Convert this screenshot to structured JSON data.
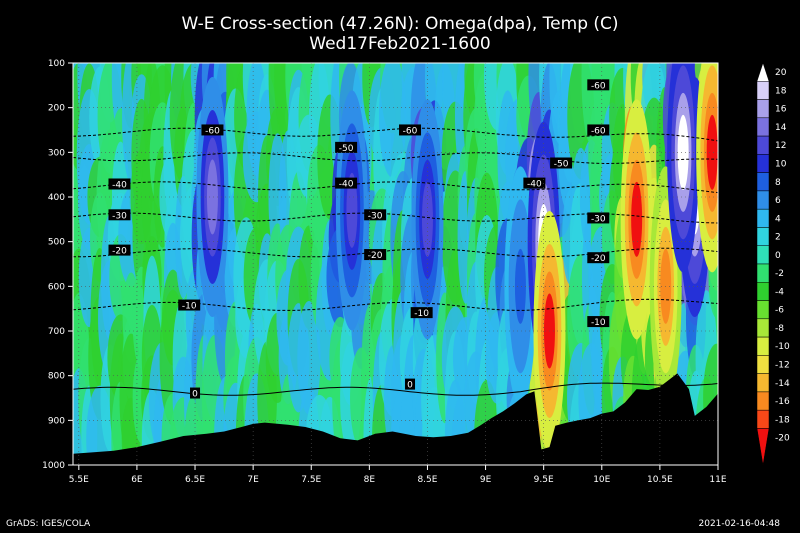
{
  "chart_data": {
    "type": "heatmap",
    "title": "W-E Cross-section (47.26N): Omega(dpa), Temp (C)",
    "subtitle": "Wed17Feb2021-1600",
    "xlabel": "",
    "ylabel": "",
    "x_ticks": [
      "5.5E",
      "6E",
      "6.5E",
      "7E",
      "7.5E",
      "8E",
      "8.5E",
      "9E",
      "9.5E",
      "10E",
      "10.5E",
      "11E"
    ],
    "x_values": [
      5.5,
      6,
      6.5,
      7,
      7.5,
      8,
      8.5,
      9,
      9.5,
      10,
      10.5,
      11
    ],
    "xlim": [
      5.45,
      11.0
    ],
    "y_ticks": [
      "100",
      "200",
      "300",
      "400",
      "500",
      "600",
      "700",
      "800",
      "900",
      "1000"
    ],
    "y_values": [
      100,
      200,
      300,
      400,
      500,
      600,
      700,
      800,
      900,
      1000
    ],
    "ylim": [
      1000,
      100
    ],
    "grid": true,
    "colorbar": {
      "labels": [
        "20",
        "18",
        "16",
        "14",
        "12",
        "10",
        "8",
        "6",
        "4",
        "2",
        "0",
        "-2",
        "-4",
        "-6",
        "-8",
        "-10",
        "-12",
        "-14",
        "-16",
        "-18",
        "-20"
      ],
      "colors": [
        "#ffffff",
        "#d8d0f8",
        "#a9a0ea",
        "#7b72e0",
        "#4d49d8",
        "#2531d8",
        "#1e5fe0",
        "#2f8ee8",
        "#2fb8f0",
        "#30d4e0",
        "#2fe0b8",
        "#30e070",
        "#2fd02f",
        "#68e030",
        "#a8e838",
        "#d8ee40",
        "#f0e040",
        "#f5b830",
        "#f88a20",
        "#f84818",
        "#f01010"
      ],
      "position": "right"
    },
    "temperature_contours": [
      {
        "label": "-60",
        "y": 255,
        "labels_at": [
          6.65,
          8.35,
          9.97
        ],
        "label_y": [
          251,
          251,
          251
        ]
      },
      {
        "label": "-50",
        "y": 310,
        "labels_at": [
          7.8,
          9.65
        ],
        "label_y": [
          290,
          325
        ]
      },
      {
        "label": "-40",
        "y": 375,
        "labels_at": [
          5.85,
          7.8,
          9.42
        ],
        "label_y": [
          372,
          370,
          370
        ]
      },
      {
        "label": "-30",
        "y": 445,
        "labels_at": [
          5.85,
          8.05,
          9.97
        ],
        "label_y": [
          441,
          441,
          448
        ]
      },
      {
        "label": "-20",
        "y": 525,
        "labels_at": [
          5.85,
          8.05,
          9.97
        ],
        "label_y": [
          520,
          530,
          537
        ]
      },
      {
        "label": "-10",
        "y": 645,
        "labels_at": [
          6.45,
          8.45,
          9.97
        ],
        "label_y": [
          643,
          660,
          680
        ]
      },
      {
        "label": "0",
        "y": 835,
        "labels_at": [
          6.5,
          8.35
        ],
        "label_y": [
          840,
          820
        ]
      }
    ],
    "top_contour_label": {
      "label": "-60",
      "x": 9.97,
      "y": 150
    },
    "terrain_surface_hpa": [
      [
        5.45,
        975
      ],
      [
        5.6,
        972
      ],
      [
        5.8,
        968
      ],
      [
        6.0,
        960
      ],
      [
        6.2,
        948
      ],
      [
        6.4,
        935
      ],
      [
        6.6,
        930
      ],
      [
        6.75,
        925
      ],
      [
        6.9,
        915
      ],
      [
        7.0,
        908
      ],
      [
        7.1,
        905
      ],
      [
        7.3,
        910
      ],
      [
        7.45,
        915
      ],
      [
        7.6,
        925
      ],
      [
        7.75,
        940
      ],
      [
        7.9,
        945
      ],
      [
        8.05,
        930
      ],
      [
        8.2,
        925
      ],
      [
        8.4,
        935
      ],
      [
        8.55,
        938
      ],
      [
        8.7,
        935
      ],
      [
        8.85,
        928
      ],
      [
        8.95,
        912
      ],
      [
        9.05,
        895
      ],
      [
        9.15,
        880
      ],
      [
        9.25,
        862
      ],
      [
        9.35,
        842
      ],
      [
        9.42,
        835
      ],
      [
        9.48,
        965
      ],
      [
        9.55,
        960
      ],
      [
        9.6,
        912
      ],
      [
        9.7,
        905
      ],
      [
        9.8,
        900
      ],
      [
        9.9,
        895
      ],
      [
        10.0,
        885
      ],
      [
        10.1,
        880
      ],
      [
        10.2,
        860
      ],
      [
        10.3,
        830
      ],
      [
        10.4,
        832
      ],
      [
        10.5,
        825
      ],
      [
        10.6,
        805
      ],
      [
        10.65,
        795
      ],
      [
        10.75,
        830
      ],
      [
        10.8,
        890
      ],
      [
        10.9,
        870
      ],
      [
        11.0,
        840
      ]
    ],
    "omega_features": [
      {
        "x": 6.65,
        "p": 400,
        "v": 14
      },
      {
        "x": 7.85,
        "p": 430,
        "v": 12
      },
      {
        "x": 8.5,
        "p": 450,
        "v": 12
      },
      {
        "x": 9.3,
        "p": 600,
        "v": 8
      },
      {
        "x": 9.5,
        "p": 500,
        "v": 20
      },
      {
        "x": 9.55,
        "p": 700,
        "v": -20
      },
      {
        "x": 10.3,
        "p": 450,
        "v": -20
      },
      {
        "x": 10.55,
        "p": 600,
        "v": -16
      },
      {
        "x": 10.8,
        "p": 400,
        "v": 20
      },
      {
        "x": 10.7,
        "p": 300,
        "v": 20
      },
      {
        "x": 10.95,
        "p": 300,
        "v": -20
      }
    ]
  },
  "footer": {
    "left": "GrADS: IGES/COLA",
    "right": "2021-02-16-04:48"
  }
}
